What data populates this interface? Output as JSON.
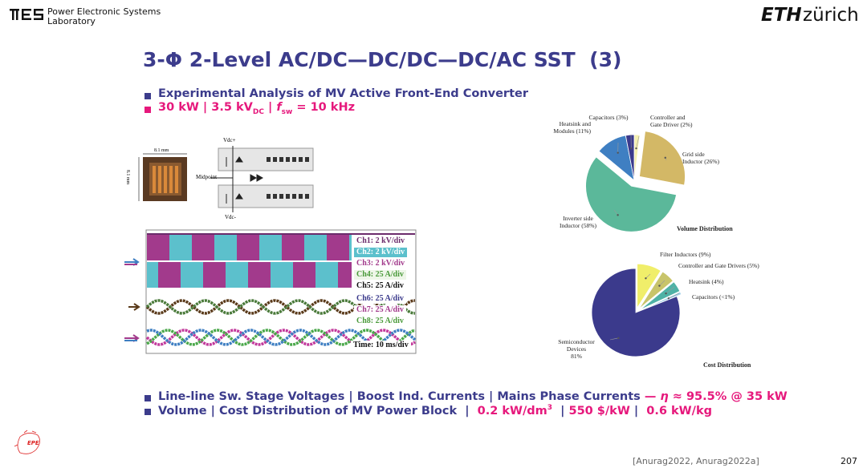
{
  "header": {
    "lab_line1": "Power Electronic Systems",
    "lab_line2": "Laboratory",
    "eth": "ETH",
    "zurich": "zürich"
  },
  "title": "3-Φ 2-Level AC/DC—DC/DC—DC/AC SST  (3)",
  "bullet1": "Experimental Analysis of MV Active Front-End Converter",
  "bullet2": {
    "power": "30 kW | 3.5 kV",
    "dc": "DC",
    "sep": " | ",
    "f": "f",
    "sw": "sw",
    "freq": " = 10 kHz"
  },
  "figure": {
    "chip_w": "8.1 mm",
    "chip_h": "8.1 mm",
    "vdc_plus": "Vdc+",
    "midpoint": "Midpoint",
    "vdc_minus": "Vdc-",
    "scope": [
      "Ch1: 2 kV/div",
      "Ch2: 2 kV/div",
      "Ch3: 2 kV/div",
      "Ch4: 25 A/div",
      "Ch5: 25 A/div",
      "Ch6: 25 A/div",
      "Ch7: 25 A/div",
      "Ch8: 25 A/div",
      "Time: 10 ms/div"
    ]
  },
  "bullet3": {
    "text": "Line-line Sw. Stage Voltages | Boost Ind. Currents | Mains Phase Currents",
    "dash": " — ",
    "eta": "η",
    "eff": " ≈ 95.5% @ 35 kW"
  },
  "bullet4": {
    "text": "Volume | Cost Distribution of MV Power Block  |  ",
    "density": "0.2 kW/dm",
    "exp": "3",
    "sep1": "  | ",
    "cost": "550 $/kW",
    "sep2": " |  ",
    "weight": "0.6 kW/kg"
  },
  "footer": {
    "ref": "[Anurag2022, Anurag2022a]",
    "page": "207",
    "logo": "EPE"
  },
  "chart_data": [
    {
      "type": "pie",
      "title": "Volume Distribution",
      "categories": [
        "Controller and\nGate Driver (2%)",
        "Grid side\nInductor (26%)",
        "Inverter side\nInductor (58%)",
        "Heatsink and\nModules (11%)",
        "Capacitors (3%)"
      ],
      "values": [
        2,
        26,
        58,
        11,
        3
      ],
      "colors": [
        "#f4efb0",
        "#d3b866",
        "#5bb89a",
        "#3f7fc2",
        "#3b3a8c"
      ]
    },
    {
      "type": "pie",
      "title": "Cost Distribution",
      "categories": [
        "Filter Inductors (9%)",
        "Controller and Gate Drivers (5%)",
        "Heatsink (4%)",
        "Capacitors (<1%)",
        "Semiconductor\nDevices\n81%"
      ],
      "values": [
        9,
        5,
        4,
        1,
        81
      ],
      "colors": [
        "#f0ee6a",
        "#c8c46a",
        "#4fb2a6",
        "#9fd0e8",
        "#3b3a8c"
      ]
    }
  ]
}
